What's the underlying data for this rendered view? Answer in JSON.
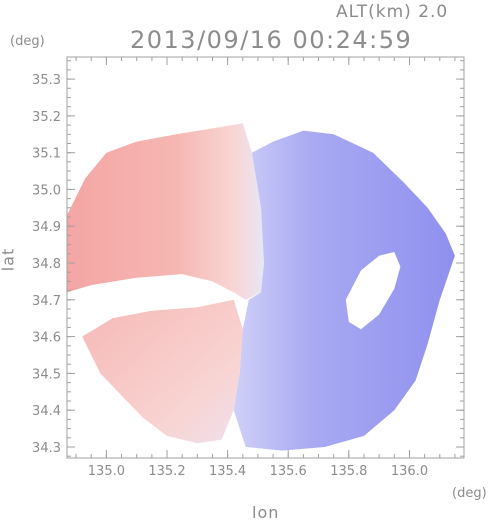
{
  "header": {
    "altitude_label": "ALT(km) 2.0",
    "timestamp": "2013/09/16 00:24:59"
  },
  "colors": {
    "axis": "#a0a0a0",
    "label": "#8c8c8c",
    "toward": "#7b7bf0",
    "away": "#f07b7b"
  },
  "chart_data": {
    "type": "heatmap",
    "title": "2013/09/16 00:24:59",
    "subtitle": "ALT(km) 2.0",
    "xlabel": "lon",
    "ylabel": "lat",
    "x_unit": "(deg)",
    "y_unit": "(deg)",
    "xlim": [
      134.87,
      136.18
    ],
    "ylim": [
      34.27,
      35.36
    ],
    "x_ticks": [
      135.0,
      135.2,
      135.4,
      135.6,
      135.8,
      136.0
    ],
    "x_tick_labels": [
      "135.0",
      "135.2",
      "135.4",
      "135.6",
      "135.8",
      "136.0"
    ],
    "y_ticks": [
      34.3,
      34.4,
      34.5,
      34.6,
      34.7,
      34.8,
      34.9,
      35.0,
      35.1,
      35.2,
      35.3
    ],
    "y_tick_labels": [
      "34.3",
      "34.4",
      "34.5",
      "34.6",
      "34.7",
      "34.8",
      "34.9",
      "35.0",
      "35.1",
      "35.2",
      "35.3"
    ],
    "x_minor_step": 0.05,
    "y_minor_step": 0.025,
    "grid": false,
    "regions": {
      "away_west_sector": [
        [
          134.87,
          34.93
        ],
        [
          134.93,
          35.03
        ],
        [
          135.0,
          35.1
        ],
        [
          135.1,
          35.13
        ],
        [
          135.23,
          35.15
        ],
        [
          135.38,
          35.17
        ],
        [
          135.45,
          35.18
        ],
        [
          135.48,
          35.1
        ],
        [
          135.51,
          34.95
        ],
        [
          135.52,
          34.8
        ],
        [
          135.51,
          34.72
        ],
        [
          135.46,
          34.7
        ],
        [
          135.42,
          34.72
        ],
        [
          135.35,
          34.75
        ],
        [
          135.25,
          34.77
        ],
        [
          135.1,
          34.76
        ],
        [
          134.95,
          34.74
        ],
        [
          134.87,
          34.72
        ]
      ],
      "away_southwest_sector": [
        [
          134.92,
          34.6
        ],
        [
          135.02,
          34.65
        ],
        [
          135.15,
          34.67
        ],
        [
          135.3,
          34.68
        ],
        [
          135.42,
          34.7
        ],
        [
          135.45,
          34.62
        ],
        [
          135.44,
          34.5
        ],
        [
          135.42,
          34.4
        ],
        [
          135.38,
          34.32
        ],
        [
          135.3,
          34.31
        ],
        [
          135.2,
          34.33
        ],
        [
          135.12,
          34.38
        ],
        [
          135.05,
          34.44
        ],
        [
          134.98,
          34.5
        ]
      ],
      "toward_east_sector": [
        [
          135.48,
          35.1
        ],
        [
          135.55,
          35.13
        ],
        [
          135.65,
          35.16
        ],
        [
          135.75,
          35.15
        ],
        [
          135.88,
          35.1
        ],
        [
          135.98,
          35.02
        ],
        [
          136.06,
          34.95
        ],
        [
          136.12,
          34.88
        ],
        [
          136.15,
          34.82
        ],
        [
          136.1,
          34.7
        ],
        [
          136.06,
          34.58
        ],
        [
          136.02,
          34.48
        ],
        [
          135.95,
          34.4
        ],
        [
          135.85,
          34.33
        ],
        [
          135.72,
          34.3
        ],
        [
          135.58,
          34.29
        ],
        [
          135.46,
          34.3
        ],
        [
          135.42,
          34.4
        ],
        [
          135.44,
          34.5
        ],
        [
          135.45,
          34.62
        ],
        [
          135.47,
          34.7
        ],
        [
          135.51,
          34.72
        ],
        [
          135.52,
          34.8
        ],
        [
          135.51,
          34.95
        ]
      ],
      "data_gap_east": [
        [
          135.84,
          34.78
        ],
        [
          135.9,
          34.82
        ],
        [
          135.95,
          34.83
        ],
        [
          135.97,
          34.79
        ],
        [
          135.95,
          34.73
        ],
        [
          135.9,
          34.66
        ],
        [
          135.84,
          34.62
        ],
        [
          135.8,
          34.64
        ],
        [
          135.79,
          34.7
        ]
      ]
    }
  }
}
